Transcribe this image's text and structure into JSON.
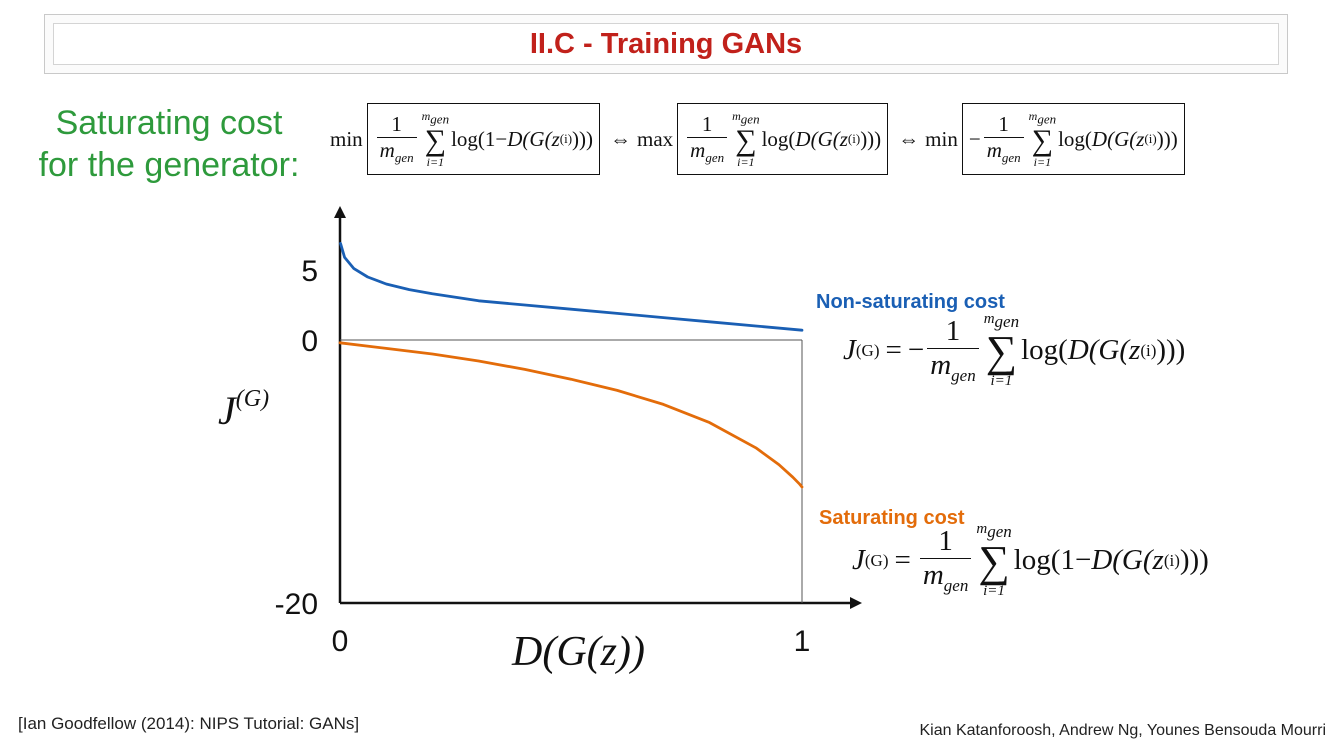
{
  "slide": {
    "title": "II.C - Training GANs",
    "caption_line1": "Saturating cost",
    "caption_line2": "for the generator:",
    "top_formula": {
      "t1_min": "min",
      "t1_num": "1",
      "t1_den": "m",
      "t1_den_sub": "gen",
      "t1_sum_top": "m",
      "t1_sum_top_sub": "gen",
      "t1_sum_sym": "∑",
      "t1_sum_bot": "i=1",
      "t1_body_a": "log(1−",
      "t1_body_b": "D(G(z",
      "t1_body_sup": "(i)",
      "t1_body_c": ")))",
      "iff1": "⇔",
      "t2_max": "max",
      "t2_num": "1",
      "t2_den": "m",
      "t2_den_sub": "gen",
      "t2_sum_top": "m",
      "t2_sum_top_sub": "gen",
      "t2_sum_sym": "∑",
      "t2_sum_bot": "i=1",
      "t2_body_a": "log(",
      "t2_body_b": "D(G(z",
      "t2_body_sup": "(i)",
      "t2_body_c": ")))",
      "iff2": "⇔",
      "t3_min": "min",
      "t3_minus": "−",
      "t3_num": "1",
      "t3_den": "m",
      "t3_den_sub": "gen",
      "t3_sum_top": "m",
      "t3_sum_top_sub": "gen",
      "t3_sum_sym": "∑",
      "t3_sum_bot": "i=1",
      "t3_body_a": "log(",
      "t3_body_b": "D(G(z",
      "t3_body_sup": "(i)",
      "t3_body_c": ")))"
    },
    "nonsat_eq": {
      "lhs": "J",
      "lhs_sup": "(G)",
      "eq": "=",
      "minus": "−",
      "num": "1",
      "den": "m",
      "den_sub": "gen",
      "sum_top": "m",
      "sum_top_sub": "gen",
      "sum_sym": "∑",
      "sum_bot": "i=1",
      "body_a": "log(",
      "body_b": "D(G(z",
      "body_sup": "(i)",
      "body_c": ")))"
    },
    "sat_eq": {
      "lhs": "J",
      "lhs_sup": "(G)",
      "eq": "=",
      "num": "1",
      "den": "m",
      "den_sub": "gen",
      "sum_top": "m",
      "sum_top_sub": "gen",
      "sum_sym": "∑",
      "sum_bot": "i=1",
      "body_a": "log(1−",
      "body_b": "D(G(z",
      "body_sup": "(i)",
      "body_c": ")))"
    },
    "footer_left": "[Ian Goodfellow (2014): NIPS Tutorial: GANs]",
    "footer_right": "Kian Katanforoosh, Andrew Ng, Younes Bensouda Mourri"
  },
  "chart_data": {
    "type": "line",
    "xlabel": "D(G(z))",
    "ylabel": "J",
    "ylabel_sup": "(G)",
    "x_ticks": [
      {
        "value": 0,
        "label": "0"
      },
      {
        "value": 1,
        "label": "1"
      }
    ],
    "y_ticks": [
      {
        "value": 5,
        "label": "5"
      },
      {
        "value": 0,
        "label": "0"
      },
      {
        "value": -20,
        "label": "-20"
      }
    ],
    "xlim": [
      0,
      1
    ],
    "ylim": [
      -20,
      7
    ],
    "series": [
      {
        "name": "Non-saturating cost",
        "color": "#1a5fb4",
        "x": [
          0.001,
          0.01,
          0.03,
          0.06,
          0.1,
          0.15,
          0.2,
          0.3,
          0.4,
          0.5,
          0.6,
          0.7,
          0.8,
          0.9,
          1.0
        ],
        "y": [
          6.9,
          5.9,
          5.1,
          4.5,
          4.0,
          3.6,
          3.3,
          2.8,
          2.5,
          2.2,
          1.9,
          1.6,
          1.3,
          1.0,
          0.7
        ]
      },
      {
        "name": "Saturating cost",
        "color": "#e36c0a",
        "x": [
          0.0,
          0.1,
          0.2,
          0.3,
          0.4,
          0.5,
          0.6,
          0.7,
          0.8,
          0.9,
          0.95,
          0.98,
          0.995,
          1.0
        ],
        "y": [
          -0.2,
          -0.6,
          -1.0,
          -1.5,
          -2.1,
          -2.8,
          -3.6,
          -4.6,
          -5.9,
          -7.7,
          -8.9,
          -9.8,
          -10.3,
          -10.5
        ]
      }
    ],
    "grid": false,
    "reference_line_y": 0,
    "reference_line_x": 1
  }
}
